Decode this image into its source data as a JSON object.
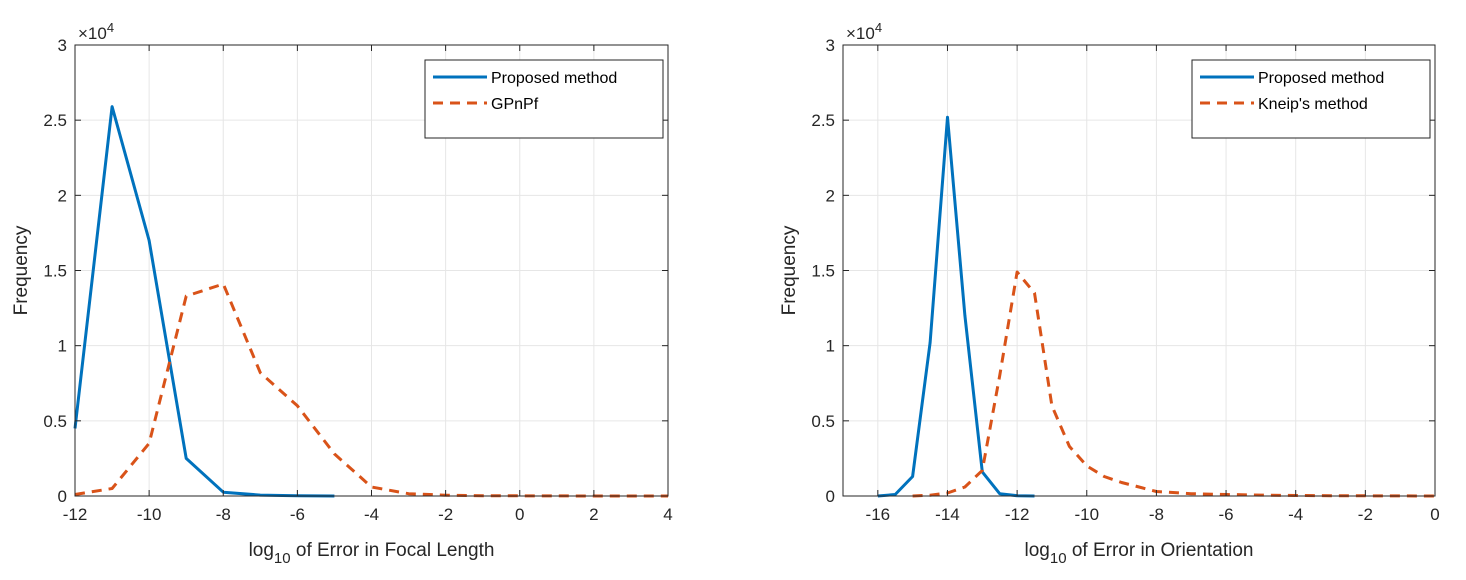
{
  "chart_data": [
    {
      "type": "line",
      "xlabel_base": "log",
      "xlabel_sub": "10",
      "xlabel_rest": " of Error in Focal Length",
      "ylabel": "Frequency",
      "xlim": [
        -12,
        4
      ],
      "ylim": [
        0,
        30000
      ],
      "xticks": [
        -12,
        -10,
        -8,
        -6,
        -4,
        -2,
        0,
        2,
        4
      ],
      "yticks": [
        0,
        5000,
        10000,
        15000,
        20000,
        25000,
        30000
      ],
      "ytick_labels": [
        "0",
        "0.5",
        "1",
        "1.5",
        "2",
        "2.5",
        "3"
      ],
      "exponent_label": "×10",
      "exponent_power": "4",
      "grid": true,
      "legend_position": "top-right",
      "series": [
        {
          "name": "Proposed method",
          "color": "#0072BD",
          "style": "solid",
          "x": [
            -12,
            -11,
            -10,
            -9,
            -8,
            -7,
            -6,
            -5
          ],
          "y": [
            4500,
            25900,
            17000,
            2500,
            250,
            60,
            20,
            0
          ]
        },
        {
          "name": "GPnPf",
          "color": "#D95319",
          "style": "dashed",
          "x": [
            -12,
            -11,
            -10,
            -9,
            -8,
            -7,
            -6,
            -5,
            -4,
            -3,
            -2,
            -1,
            0,
            1,
            2,
            3,
            4
          ],
          "y": [
            100,
            500,
            3500,
            13300,
            14100,
            8200,
            6000,
            2800,
            600,
            150,
            50,
            20,
            10,
            5,
            0,
            0,
            0
          ]
        }
      ]
    },
    {
      "type": "line",
      "xlabel_base": "log",
      "xlabel_sub": "10",
      "xlabel_rest": " of Error in Orientation",
      "ylabel": "Frequency",
      "xlim": [
        -17,
        0
      ],
      "ylim": [
        0,
        30000
      ],
      "xticks": [
        -16,
        -14,
        -12,
        -10,
        -8,
        -6,
        -4,
        -2,
        0
      ],
      "yticks": [
        0,
        5000,
        10000,
        15000,
        20000,
        25000,
        30000
      ],
      "ytick_labels": [
        "0",
        "0.5",
        "1",
        "1.5",
        "2",
        "2.5",
        "3"
      ],
      "exponent_label": "×10",
      "exponent_power": "4",
      "grid": true,
      "legend_position": "top-right",
      "series": [
        {
          "name": "Proposed method",
          "color": "#0072BD",
          "style": "solid",
          "x": [
            -16,
            -15.5,
            -15,
            -14.5,
            -14,
            -13.5,
            -13,
            -12.5,
            -12,
            -11.5
          ],
          "y": [
            0,
            100,
            1300,
            10200,
            25200,
            12000,
            1600,
            150,
            20,
            0
          ]
        },
        {
          "name": "Kneip's method",
          "color": "#D95319",
          "style": "dashed",
          "x": [
            -15,
            -14.5,
            -14,
            -13.5,
            -13,
            -12.5,
            -12,
            -11.5,
            -11,
            -10.5,
            -10,
            -9.5,
            -9,
            -8.5,
            -8,
            -7,
            -6,
            -5,
            -4,
            -3,
            -2,
            -1,
            0
          ],
          "y": [
            0,
            50,
            200,
            600,
            1700,
            8000,
            14900,
            13500,
            6000,
            3300,
            2000,
            1300,
            900,
            600,
            300,
            150,
            100,
            60,
            30,
            20,
            10,
            5,
            0
          ]
        }
      ]
    }
  ]
}
